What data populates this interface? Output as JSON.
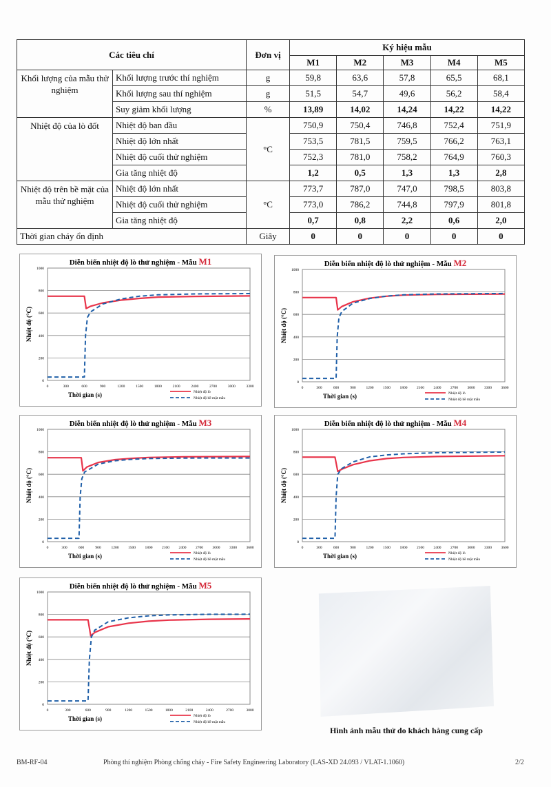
{
  "table": {
    "headers": {
      "criteria": "Các tiêu chí",
      "unit": "Đơn vị",
      "samples_label": "Ký hiệu mẫu",
      "samples": [
        "M1",
        "M2",
        "M3",
        "M4",
        "M5"
      ]
    },
    "groups": [
      {
        "label": "Khối lượng của mẫu thử nghiệm",
        "rows": [
          {
            "name": "Khối lượng trước thí nghiệm",
            "unit": "g",
            "values": [
              "59,8",
              "63,6",
              "57,8",
              "65,5",
              "68,1"
            ],
            "bold": false
          },
          {
            "name": "Khối lượng sau thí nghiệm",
            "unit": "g",
            "values": [
              "51,5",
              "54,7",
              "49,6",
              "56,2",
              "58,4"
            ],
            "bold": false
          },
          {
            "name": "Suy giảm khối lượng",
            "unit": "%",
            "values": [
              "13,89",
              "14,02",
              "14,24",
              "14,22",
              "14,22"
            ],
            "bold": true
          }
        ]
      },
      {
        "label": "Nhiệt độ của lò đốt",
        "unit": "°C",
        "rows": [
          {
            "name": "Nhiệt độ ban đầu",
            "values": [
              "750,9",
              "750,4",
              "746,8",
              "752,4",
              "751,9"
            ],
            "bold": false
          },
          {
            "name": "Nhiệt độ lớn nhất",
            "values": [
              "753,5",
              "781,5",
              "759,5",
              "766,2",
              "763,1"
            ],
            "bold": false
          },
          {
            "name": "Nhiệt độ cuối thử nghiệm",
            "values": [
              "752,3",
              "781,0",
              "758,2",
              "764,9",
              "760,3"
            ],
            "bold": false
          },
          {
            "name": "Gia tăng nhiệt độ",
            "values": [
              "1,2",
              "0,5",
              "1,3",
              "1,3",
              "2,8"
            ],
            "bold": true
          }
        ]
      },
      {
        "label": "Nhiệt độ trên bề mặt của mẫu thử nghiệm",
        "unit": "°C",
        "rows": [
          {
            "name": "Nhiệt độ lớn nhất",
            "values": [
              "773,7",
              "787,0",
              "747,0",
              "798,5",
              "803,8"
            ],
            "bold": false
          },
          {
            "name": "Nhiệt độ cuối thử nghiệm",
            "values": [
              "773,0",
              "786,2",
              "744,8",
              "797,9",
              "801,8"
            ],
            "bold": false
          },
          {
            "name": "Gia tăng nhiệt độ",
            "values": [
              "0,7",
              "0,8",
              "2,2",
              "0,6",
              "2,0"
            ],
            "bold": true
          }
        ]
      }
    ],
    "last_row": {
      "name": "Thời gian cháy ổn định",
      "unit": "Giây",
      "values": [
        "0",
        "0",
        "0",
        "0",
        "0"
      ]
    }
  },
  "chart_data": [
    {
      "type": "line",
      "title": "Diễn biến nhiệt độ lò thử nghiệm - Mẫu ",
      "sample": "M1",
      "xlabel": "Thời gian  (s)",
      "ylabel": "Nhiệt độ (°C)",
      "xlim": [
        0,
        3300
      ],
      "xticks": [
        0,
        300,
        600,
        900,
        1200,
        1500,
        1800,
        2100,
        2400,
        2700,
        3000,
        3300
      ],
      "ylim": [
        0,
        1000
      ],
      "yticks": [
        0,
        200,
        400,
        600,
        800,
        1000
      ],
      "grid": true,
      "legend": "bottom-right",
      "series": [
        {
          "name": "Nhiệt độ lò",
          "color": "#e8344a",
          "style": "solid",
          "points": [
            [
              0,
              750
            ],
            [
              600,
              750
            ],
            [
              630,
              640
            ],
            [
              700,
              660
            ],
            [
              900,
              690
            ],
            [
              1200,
              715
            ],
            [
              1500,
              730
            ],
            [
              1800,
              742
            ],
            [
              2400,
              748
            ],
            [
              3300,
              752
            ]
          ]
        },
        {
          "name": "Nhiệt độ bề mặt mẫu",
          "color": "#1f5fa8",
          "style": "dashed",
          "points": [
            [
              0,
              30
            ],
            [
              600,
              30
            ],
            [
              620,
              400
            ],
            [
              650,
              560
            ],
            [
              700,
              610
            ],
            [
              900,
              680
            ],
            [
              1200,
              725
            ],
            [
              1500,
              750
            ],
            [
              1800,
              762
            ],
            [
              2400,
              770
            ],
            [
              3300,
              773
            ]
          ]
        }
      ]
    },
    {
      "type": "line",
      "title": "Diễn biến nhiệt độ lò thử nghiệm - Mẫu ",
      "sample": "M2",
      "xlabel": "Thời gian  (s)",
      "ylabel": "Nhiệt độ (°C)",
      "xlim": [
        0,
        3600
      ],
      "xticks": [
        0,
        300,
        600,
        900,
        1200,
        1500,
        1800,
        2100,
        2400,
        2700,
        3000,
        3300,
        3600
      ],
      "ylim": [
        0,
        1000
      ],
      "yticks": [
        0,
        200,
        400,
        600,
        800,
        1000
      ],
      "grid": true,
      "legend": "bottom-right",
      "series": [
        {
          "name": "Nhiệt độ lò",
          "color": "#e8344a",
          "style": "solid",
          "points": [
            [
              0,
              750
            ],
            [
              600,
              750
            ],
            [
              630,
              640
            ],
            [
              700,
              670
            ],
            [
              900,
              712
            ],
            [
              1200,
              745
            ],
            [
              1500,
              762
            ],
            [
              1800,
              772
            ],
            [
              2400,
              778
            ],
            [
              3600,
              781
            ]
          ]
        },
        {
          "name": "Nhiệt độ bề mặt mẫu",
          "color": "#1f5fa8",
          "style": "dashed",
          "points": [
            [
              0,
              30
            ],
            [
              600,
              30
            ],
            [
              620,
              400
            ],
            [
              650,
              570
            ],
            [
              700,
              625
            ],
            [
              900,
              700
            ],
            [
              1200,
              742
            ],
            [
              1500,
              763
            ],
            [
              1800,
              774
            ],
            [
              2400,
              782
            ],
            [
              3600,
              786
            ]
          ]
        }
      ]
    },
    {
      "type": "line",
      "title": "Diễn biến nhiệt độ lò thử nghiệm - Mẫu ",
      "sample": "M3",
      "xlabel": "Thời gian  (s)",
      "ylabel": "Nhiệt độ (°C)",
      "xlim": [
        0,
        3600
      ],
      "xticks": [
        0,
        300,
        600,
        900,
        1200,
        1500,
        1800,
        2100,
        2400,
        2700,
        3000,
        3300,
        3600
      ],
      "ylim": [
        0,
        1000
      ],
      "yticks": [
        0,
        200,
        400,
        600,
        800,
        1000
      ],
      "grid": true,
      "legend": "bottom-right",
      "series": [
        {
          "name": "Nhiệt độ lò",
          "color": "#e8344a",
          "style": "solid",
          "points": [
            [
              0,
              747
            ],
            [
              600,
              747
            ],
            [
              630,
              630
            ],
            [
              700,
              665
            ],
            [
              900,
              705
            ],
            [
              1200,
              730
            ],
            [
              1500,
              742
            ],
            [
              1800,
              750
            ],
            [
              2400,
              755
            ],
            [
              3600,
              758
            ]
          ]
        },
        {
          "name": "Nhiệt độ bề mặt mẫu",
          "color": "#1f5fa8",
          "style": "dashed",
          "points": [
            [
              0,
              30
            ],
            [
              560,
              30
            ],
            [
              580,
              400
            ],
            [
              610,
              560
            ],
            [
              660,
              620
            ],
            [
              900,
              690
            ],
            [
              1200,
              720
            ],
            [
              1500,
              733
            ],
            [
              1800,
              740
            ],
            [
              2400,
              744
            ],
            [
              3600,
              745
            ]
          ]
        }
      ]
    },
    {
      "type": "line",
      "title": "Diễn biến nhiệt độ lò thử nghiệm - Mẫu ",
      "sample": "M4",
      "xlabel": "Thời gian  (s)",
      "ylabel": "Nhiệt độ (°C)",
      "xlim": [
        0,
        3600
      ],
      "xticks": [
        0,
        300,
        600,
        900,
        1200,
        1500,
        1800,
        2100,
        2400,
        2700,
        3000,
        3300,
        3600
      ],
      "ylim": [
        0,
        1000
      ],
      "yticks": [
        0,
        200,
        400,
        600,
        800,
        1000
      ],
      "grid": true,
      "legend": "bottom-right",
      "series": [
        {
          "name": "Nhiệt độ lò",
          "color": "#e8344a",
          "style": "solid",
          "points": [
            [
              0,
              752
            ],
            [
              580,
              752
            ],
            [
              630,
              625
            ],
            [
              700,
              645
            ],
            [
              900,
              685
            ],
            [
              1200,
              720
            ],
            [
              1500,
              740
            ],
            [
              1800,
              750
            ],
            [
              2400,
              758
            ],
            [
              3600,
              765
            ]
          ]
        },
        {
          "name": "Nhiệt độ bề mặt mẫu",
          "color": "#1f5fa8",
          "style": "dashed",
          "points": [
            [
              0,
              30
            ],
            [
              580,
              30
            ],
            [
              600,
              400
            ],
            [
              630,
              600
            ],
            [
              700,
              650
            ],
            [
              900,
              710
            ],
            [
              1200,
              755
            ],
            [
              1500,
              772
            ],
            [
              1800,
              782
            ],
            [
              2400,
              792
            ],
            [
              3600,
              798
            ]
          ]
        }
      ]
    },
    {
      "type": "line",
      "title": "Diễn biến nhiệt độ lò thử nghiệm - Mẫu ",
      "sample": "M5",
      "xlabel": "Thời gian (s)",
      "ylabel": "Nhiệt độ (°C)",
      "xlim": [
        0,
        3000
      ],
      "xticks": [
        0,
        300,
        600,
        900,
        1200,
        1500,
        1800,
        2100,
        2400,
        2700,
        3000
      ],
      "ylim": [
        0,
        1000
      ],
      "yticks": [
        0,
        200,
        400,
        600,
        800,
        1000
      ],
      "grid": true,
      "legend": "bottom-right",
      "series": [
        {
          "name": "Nhiệt độ lò",
          "color": "#e8344a",
          "style": "solid",
          "points": [
            [
              0,
              752
            ],
            [
              600,
              752
            ],
            [
              640,
              610
            ],
            [
              700,
              640
            ],
            [
              900,
              690
            ],
            [
              1200,
              722
            ],
            [
              1500,
              740
            ],
            [
              1800,
              750
            ],
            [
              2400,
              757
            ],
            [
              3000,
              760
            ]
          ]
        },
        {
          "name": "Nhiệt độ bề mặt mẫu",
          "color": "#1f5fa8",
          "style": "dashed",
          "points": [
            [
              0,
              30
            ],
            [
              600,
              30
            ],
            [
              620,
              400
            ],
            [
              650,
              600
            ],
            [
              700,
              660
            ],
            [
              900,
              735
            ],
            [
              1200,
              770
            ],
            [
              1500,
              788
            ],
            [
              1800,
              796
            ],
            [
              2400,
              801
            ],
            [
              3000,
              802
            ]
          ]
        }
      ]
    }
  ],
  "photo_caption": "Hình ảnh mẫu thử do khách hàng cung cấp",
  "footer": {
    "code": "BM-RF-04",
    "lab": "Phòng thí nghiệm Phòng chống cháy - Fire Safety Engineering Laboratory  (LAS-XD 24.093 / VLAT-1.1060)",
    "page": "2/2"
  }
}
